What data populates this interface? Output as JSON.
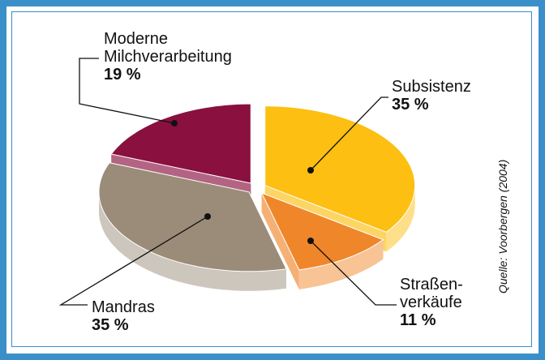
{
  "chart_data": {
    "type": "pie",
    "categories": [
      "Subsistenz",
      "Straßen-verkäufe",
      "Mandras",
      "Moderne Milchverarbeitung"
    ],
    "values": [
      35,
      11,
      35,
      19
    ],
    "value_labels": [
      "35 %",
      "11 %",
      "35 %",
      "19 %"
    ],
    "colors": [
      "#fcbf12",
      "#f0862a",
      "#9b8c79",
      "#8a1040"
    ],
    "source": "Quelle: Voorbergen (2004)"
  }
}
